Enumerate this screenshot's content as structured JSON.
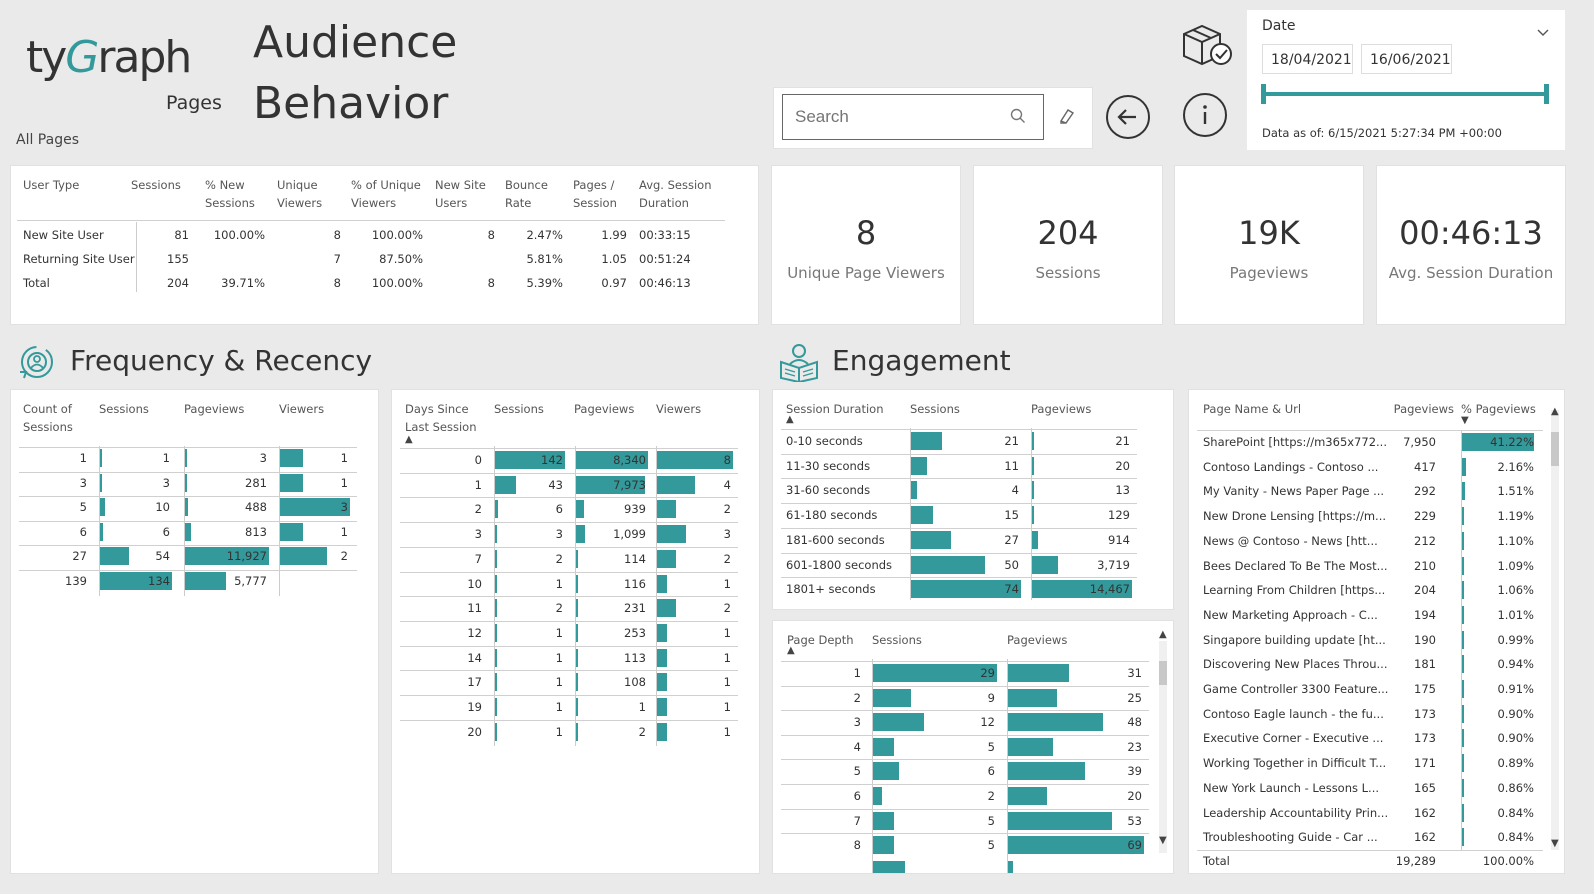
{
  "header": {
    "logo_ty": "ty",
    "logo_g": "G",
    "logo_raph": "raph",
    "logo_pages": "Pages",
    "title_line1": "Audience",
    "title_line2": "Behavior",
    "subtitle": "All Pages"
  },
  "search": {
    "placeholder": "Search"
  },
  "date_filter": {
    "label": "Date",
    "start": "18/04/2021",
    "end": "16/06/2021",
    "data_as_of": "Data as of: 6/15/2021 5:27:34 PM +00:00"
  },
  "user_type_table": {
    "headers": [
      "User Type",
      "Sessions",
      "% New Sessions",
      "Unique Viewers",
      "% of Unique Viewers",
      "New Site Users",
      "Bounce Rate",
      "Pages / Session",
      "Avg. Session Duration"
    ],
    "header_lines": [
      [
        "User Type"
      ],
      [
        "Sessions"
      ],
      [
        "% New",
        "Sessions"
      ],
      [
        "Unique",
        "Viewers"
      ],
      [
        "% of Unique",
        "Viewers"
      ],
      [
        "New Site",
        "Users"
      ],
      [
        "Bounce",
        "Rate"
      ],
      [
        "Pages /",
        "Session"
      ],
      [
        "Avg. Session",
        "Duration"
      ]
    ],
    "rows": [
      [
        "New Site User",
        "81",
        "100.00%",
        "8",
        "100.00%",
        "8",
        "2.47%",
        "1.99",
        "00:33:15"
      ],
      [
        "Returning Site User",
        "155",
        "",
        "7",
        "87.50%",
        "",
        "5.81%",
        "1.05",
        "00:51:24"
      ],
      [
        "Total",
        "204",
        "39.71%",
        "8",
        "100.00%",
        "8",
        "5.39%",
        "0.97",
        "00:46:13"
      ]
    ]
  },
  "kpis": [
    {
      "value": "8",
      "label": "Unique Page Viewers"
    },
    {
      "value": "204",
      "label": "Sessions"
    },
    {
      "value": "19K",
      "label": "Pageviews"
    },
    {
      "value": "00:46:13",
      "label": "Avg. Session Duration"
    }
  ],
  "sections": {
    "frequency": "Frequency & Recency",
    "engagement": "Engagement"
  },
  "count_of_sessions": {
    "headers": [
      "Count of Sessions",
      "Sessions",
      "Pageviews",
      "Viewers"
    ],
    "header_lines": [
      [
        "Count of",
        "Sessions"
      ],
      [
        "Sessions"
      ],
      [
        "Pageviews"
      ],
      [
        "Viewers"
      ]
    ],
    "rows": [
      {
        "count": "1",
        "sessions": 1,
        "pageviews": 3,
        "viewers": 1
      },
      {
        "count": "3",
        "sessions": 3,
        "pageviews": 281,
        "viewers": 1
      },
      {
        "count": "5",
        "sessions": 10,
        "pageviews": 488,
        "viewers": 3
      },
      {
        "count": "6",
        "sessions": 6,
        "pageviews": 813,
        "viewers": 1
      },
      {
        "count": "27",
        "sessions": 54,
        "pageviews": 11927,
        "viewers": 2
      },
      {
        "count": "139",
        "sessions": 134,
        "pageviews": 5777,
        "viewers": ""
      }
    ],
    "display": [
      [
        "1",
        "1",
        "3",
        "1"
      ],
      [
        "3",
        "3",
        "281",
        "1"
      ],
      [
        "5",
        "10",
        "488",
        "3"
      ],
      [
        "6",
        "6",
        "813",
        "1"
      ],
      [
        "27",
        "54",
        "11,927",
        "2"
      ],
      [
        "139",
        "134",
        "5,777",
        ""
      ]
    ]
  },
  "days_since": {
    "headers": [
      "Days Since Last Session",
      "Sessions",
      "Pageviews",
      "Viewers"
    ],
    "header_lines": [
      [
        "Days Since",
        "Last Session"
      ],
      [
        "Sessions"
      ],
      [
        "Pageviews"
      ],
      [
        "Viewers"
      ]
    ],
    "rows": [
      {
        "days": "0",
        "sessions": 142,
        "pageviews": 8340,
        "viewers": 8
      },
      {
        "days": "1",
        "sessions": 43,
        "pageviews": 7973,
        "viewers": 4
      },
      {
        "days": "2",
        "sessions": 6,
        "pageviews": 939,
        "viewers": 2
      },
      {
        "days": "3",
        "sessions": 3,
        "pageviews": 1099,
        "viewers": 3
      },
      {
        "days": "7",
        "sessions": 2,
        "pageviews": 114,
        "viewers": 2
      },
      {
        "days": "10",
        "sessions": 1,
        "pageviews": 116,
        "viewers": 1
      },
      {
        "days": "11",
        "sessions": 2,
        "pageviews": 231,
        "viewers": 2
      },
      {
        "days": "12",
        "sessions": 1,
        "pageviews": 253,
        "viewers": 1
      },
      {
        "days": "14",
        "sessions": 1,
        "pageviews": 113,
        "viewers": 1
      },
      {
        "days": "17",
        "sessions": 1,
        "pageviews": 108,
        "viewers": 1
      },
      {
        "days": "19",
        "sessions": 1,
        "pageviews": 1,
        "viewers": 1
      },
      {
        "days": "20",
        "sessions": 1,
        "pageviews": 2,
        "viewers": 1
      }
    ],
    "display": [
      [
        "0",
        "142",
        "8,340",
        "8"
      ],
      [
        "1",
        "43",
        "7,973",
        "4"
      ],
      [
        "2",
        "6",
        "939",
        "2"
      ],
      [
        "3",
        "3",
        "1,099",
        "3"
      ],
      [
        "7",
        "2",
        "114",
        "2"
      ],
      [
        "10",
        "1",
        "116",
        "1"
      ],
      [
        "11",
        "2",
        "231",
        "2"
      ],
      [
        "12",
        "1",
        "253",
        "1"
      ],
      [
        "14",
        "1",
        "113",
        "1"
      ],
      [
        "17",
        "1",
        "108",
        "1"
      ],
      [
        "19",
        "1",
        "1",
        "1"
      ],
      [
        "20",
        "1",
        "2",
        "1"
      ]
    ]
  },
  "session_duration": {
    "headers": [
      "Session Duration",
      "Sessions",
      "Pageviews"
    ],
    "rows": [
      {
        "label": "0-10 seconds",
        "sessions": 21,
        "pageviews": 21
      },
      {
        "label": "11-30 seconds",
        "sessions": 11,
        "pageviews": 20
      },
      {
        "label": "31-60 seconds",
        "sessions": 4,
        "pageviews": 13
      },
      {
        "label": "61-180 seconds",
        "sessions": 15,
        "pageviews": 129
      },
      {
        "label": "181-600 seconds",
        "sessions": 27,
        "pageviews": 914
      },
      {
        "label": "601-1800 seconds",
        "sessions": 50,
        "pageviews": 3719
      },
      {
        "label": "1801+ seconds",
        "sessions": 74,
        "pageviews": 14467
      }
    ],
    "display": [
      [
        "0-10 seconds",
        "21",
        "21"
      ],
      [
        "11-30 seconds",
        "11",
        "20"
      ],
      [
        "31-60 seconds",
        "4",
        "13"
      ],
      [
        "61-180 seconds",
        "15",
        "129"
      ],
      [
        "181-600 seconds",
        "27",
        "914"
      ],
      [
        "601-1800 seconds",
        "50",
        "3,719"
      ],
      [
        "1801+ seconds",
        "74",
        "14,467"
      ]
    ]
  },
  "page_depth": {
    "headers": [
      "Page Depth",
      "Sessions",
      "Pageviews"
    ],
    "rows": [
      {
        "depth": "1",
        "sessions": 29,
        "pageviews": 31
      },
      {
        "depth": "2",
        "sessions": 9,
        "pageviews": 25
      },
      {
        "depth": "3",
        "sessions": 12,
        "pageviews": 48
      },
      {
        "depth": "4",
        "sessions": 5,
        "pageviews": 23
      },
      {
        "depth": "5",
        "sessions": 6,
        "pageviews": 39
      },
      {
        "depth": "6",
        "sessions": 2,
        "pageviews": 20
      },
      {
        "depth": "7",
        "sessions": 5,
        "pageviews": 53
      },
      {
        "depth": "8",
        "sessions": 5,
        "pageviews": 69
      }
    ],
    "display": [
      [
        "1",
        "29",
        "31"
      ],
      [
        "2",
        "9",
        "25"
      ],
      [
        "3",
        "12",
        "48"
      ],
      [
        "4",
        "5",
        "23"
      ],
      [
        "5",
        "6",
        "39"
      ],
      [
        "6",
        "2",
        "20"
      ],
      [
        "7",
        "5",
        "53"
      ],
      [
        "8",
        "5",
        "69"
      ]
    ]
  },
  "pages_table": {
    "headers": [
      "Page Name & Url",
      "Pageviews",
      "% Pageviews"
    ],
    "rows": [
      {
        "name": "SharePoint [https://m365x772...",
        "pageviews": "7,950",
        "pct": "41.22%",
        "pct_value": 41.22
      },
      {
        "name": "Contoso Landings - Contoso ...",
        "pageviews": "417",
        "pct": "2.16%",
        "pct_value": 2.16
      },
      {
        "name": "My Vanity - News Paper Page ...",
        "pageviews": "292",
        "pct": "1.51%",
        "pct_value": 1.51
      },
      {
        "name": "New Drone Lensing [https://m...",
        "pageviews": "229",
        "pct": "1.19%",
        "pct_value": 1.19
      },
      {
        "name": "News @ Contoso - News [htt...",
        "pageviews": "212",
        "pct": "1.10%",
        "pct_value": 1.1
      },
      {
        "name": "Bees Declared To Be The Most...",
        "pageviews": "210",
        "pct": "1.09%",
        "pct_value": 1.09
      },
      {
        "name": "Learning From Children [https...",
        "pageviews": "204",
        "pct": "1.06%",
        "pct_value": 1.06
      },
      {
        "name": "New Marketing Approach - C...",
        "pageviews": "194",
        "pct": "1.01%",
        "pct_value": 1.01
      },
      {
        "name": "Singapore building update [ht...",
        "pageviews": "190",
        "pct": "0.99%",
        "pct_value": 0.99
      },
      {
        "name": "Discovering New Places Throu...",
        "pageviews": "181",
        "pct": "0.94%",
        "pct_value": 0.94
      },
      {
        "name": "Game Controller 3300 Feature...",
        "pageviews": "175",
        "pct": "0.91%",
        "pct_value": 0.91
      },
      {
        "name": "Contoso Eagle launch - the fu...",
        "pageviews": "173",
        "pct": "0.90%",
        "pct_value": 0.9
      },
      {
        "name": "Executive Corner - Executive ...",
        "pageviews": "173",
        "pct": "0.90%",
        "pct_value": 0.9
      },
      {
        "name": "Working Together in Difficult T...",
        "pageviews": "171",
        "pct": "0.89%",
        "pct_value": 0.89
      },
      {
        "name": "New York Launch - Lessons L...",
        "pageviews": "165",
        "pct": "0.86%",
        "pct_value": 0.86
      },
      {
        "name": "Leadership Accountability Prin...",
        "pageviews": "162",
        "pct": "0.84%",
        "pct_value": 0.84
      },
      {
        "name": "Troubleshooting Guide - Car ...",
        "pageviews": "162",
        "pct": "0.84%",
        "pct_value": 0.84
      }
    ],
    "total": {
      "label": "Total",
      "pageviews": "19,289",
      "pct": "100.00%"
    }
  },
  "colors": {
    "accent": "#34999a",
    "background": "#eaeaea",
    "panel": "#ffffff"
  }
}
